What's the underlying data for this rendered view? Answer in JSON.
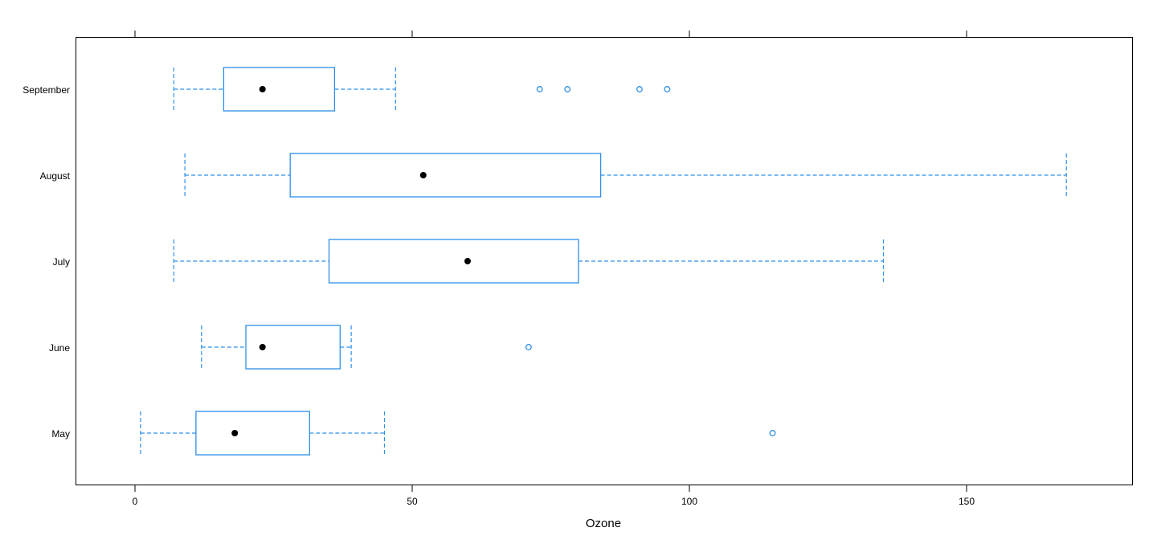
{
  "chart_data": {
    "type": "boxplot",
    "title": "",
    "xlabel": "Ozone",
    "ylabel": "",
    "xlim": [
      -10,
      180
    ],
    "xticks": [
      0,
      50,
      100,
      150
    ],
    "categories": [
      "May",
      "June",
      "July",
      "August",
      "September"
    ],
    "boxes": [
      {
        "name": "May",
        "whisker_low": 1,
        "q1": 11,
        "median": 18,
        "q3": 31.5,
        "whisker_high": 45,
        "outliers": [
          115
        ]
      },
      {
        "name": "June",
        "whisker_low": 12,
        "q1": 20,
        "median": 23,
        "q3": 37,
        "whisker_high": 39,
        "outliers": [
          71
        ]
      },
      {
        "name": "July",
        "whisker_low": 7,
        "q1": 35,
        "median": 60,
        "q3": 80,
        "whisker_high": 135,
        "outliers": []
      },
      {
        "name": "August",
        "whisker_low": 9,
        "q1": 28,
        "median": 52,
        "q3": 84,
        "whisker_high": 168,
        "outliers": []
      },
      {
        "name": "September",
        "whisker_low": 7,
        "q1": 16,
        "median": 23,
        "q3": 36,
        "whisker_high": 47,
        "outliers": [
          73,
          78,
          91,
          96
        ]
      }
    ],
    "colors": {
      "box": "#2e8fe8",
      "median": "#000000"
    }
  }
}
